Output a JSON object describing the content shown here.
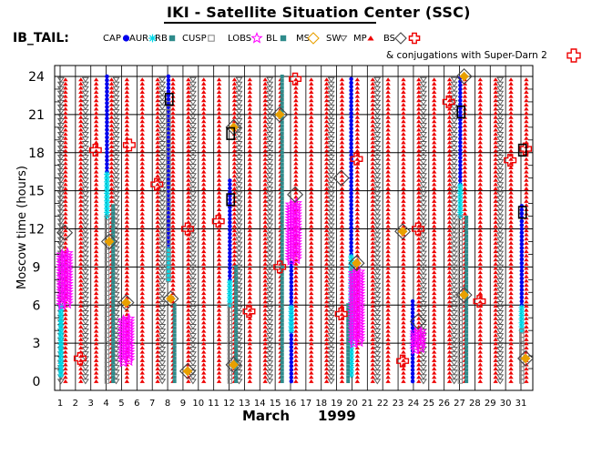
{
  "header": {
    "title": "IKI - Satellite Situation Center (SSC)"
  },
  "legend": {
    "prefix": "IB_TAIL:",
    "items": [
      {
        "label": "CAP",
        "symbol": "dot",
        "color": "#0000ee"
      },
      {
        "label": "AUR",
        "symbol": "star",
        "color": "#00d8e8"
      },
      {
        "label": "RB",
        "symbol": "square-filled",
        "color": "#2e8b8b"
      },
      {
        "label": "CUSP",
        "symbol": "square-open",
        "color": "#808080"
      },
      {
        "label": "LOBS",
        "symbol": "star-open",
        "color": "#ff00ff"
      },
      {
        "label": "BL",
        "symbol": "square-filled",
        "color": "#2e8b8b"
      },
      {
        "label": "MS",
        "symbol": "diamond",
        "color": "#e8a000"
      },
      {
        "label": "SW",
        "symbol": "triangle-down",
        "color": "#555555"
      },
      {
        "label": "MP",
        "symbol": "triangle-up",
        "color": "#ee0000"
      },
      {
        "label": "BS",
        "symbol": "diamond",
        "color": "#444444"
      },
      {
        "label": "",
        "symbol": "cross",
        "color": "#ee0000"
      }
    ],
    "conjugation_note": "& conjugations with Super-Darn 2"
  },
  "chart_data": {
    "type": "scatter",
    "title": "IKI - Satellite Situation Center (SSC)",
    "xlabel": "March",
    "xlabel_year": "1999",
    "ylabel": "Moscow time (hours)",
    "xlim": [
      1,
      31
    ],
    "ylim": [
      0,
      24
    ],
    "x_ticks": [
      1,
      2,
      3,
      4,
      5,
      6,
      7,
      8,
      9,
      10,
      11,
      12,
      13,
      14,
      15,
      16,
      17,
      18,
      19,
      20,
      21,
      22,
      23,
      24,
      25,
      26,
      27,
      28,
      29,
      30,
      31
    ],
    "y_ticks": [
      0,
      3,
      6,
      9,
      12,
      15,
      18,
      21,
      24
    ],
    "grid": true,
    "colors": {
      "CAP": "#0000ee",
      "AUR": "#00d8e8",
      "RB": "#2e8b8b",
      "CUSP": "#808080",
      "LOBS": "#ff00ff",
      "MS": "#e8a000",
      "SW": "#555555",
      "MP": "#ee0000",
      "BS": "#444444",
      "conj": "#ee0000"
    },
    "series": [
      {
        "name": "MP",
        "type": "track",
        "intervals": [
          [
            1.35,
            0,
            24
          ],
          [
            2.35,
            0,
            24
          ],
          [
            3.35,
            0,
            24
          ],
          [
            4.35,
            0,
            24
          ],
          [
            5.35,
            0,
            24
          ],
          [
            6.35,
            0,
            24
          ],
          [
            7.35,
            0,
            24
          ],
          [
            8.35,
            0,
            24
          ],
          [
            9.35,
            0,
            24
          ],
          [
            10.35,
            0,
            24
          ],
          [
            11.35,
            0,
            24
          ],
          [
            12.35,
            0,
            24
          ],
          [
            13.35,
            0,
            24
          ],
          [
            14.35,
            0,
            24
          ],
          [
            15.35,
            0,
            24
          ],
          [
            16.35,
            0,
            24
          ],
          [
            17.35,
            0,
            24
          ],
          [
            18.35,
            0,
            24
          ],
          [
            19.35,
            0,
            24
          ],
          [
            20.35,
            0,
            24
          ],
          [
            21.35,
            0,
            24
          ],
          [
            22.35,
            0,
            24
          ],
          [
            23.35,
            0,
            24
          ],
          [
            24.35,
            0,
            24
          ],
          [
            25.35,
            0,
            24
          ],
          [
            26.35,
            0,
            24
          ],
          [
            27.35,
            0,
            24
          ],
          [
            28.35,
            0,
            24
          ],
          [
            29.35,
            0,
            24
          ],
          [
            30.35,
            0,
            24
          ],
          [
            31.35,
            0,
            24
          ]
        ]
      },
      {
        "name": "SW",
        "type": "track",
        "intervals": [
          [
            1.05,
            0,
            24
          ],
          [
            2.65,
            0,
            24
          ],
          [
            4.65,
            0,
            24
          ],
          [
            7.65,
            0,
            24
          ],
          [
            9.65,
            0,
            24
          ],
          [
            12.65,
            0,
            24
          ],
          [
            14.65,
            0,
            24
          ],
          [
            18.65,
            0,
            24
          ],
          [
            21.65,
            0,
            24
          ],
          [
            24.65,
            0,
            24
          ],
          [
            26.65,
            0,
            24
          ],
          [
            29.65,
            0,
            24
          ]
        ]
      },
      {
        "name": "CAP",
        "type": "track",
        "intervals": [
          [
            4.05,
            16.5,
            24
          ],
          [
            8.05,
            10.5,
            24
          ],
          [
            12.05,
            8,
            16
          ],
          [
            16.05,
            0,
            9.5
          ],
          [
            19.95,
            10,
            24
          ],
          [
            23.95,
            0,
            6.5
          ],
          [
            27.05,
            15.5,
            24
          ],
          [
            31.05,
            6,
            14
          ]
        ]
      },
      {
        "name": "AUR",
        "type": "track",
        "intervals": [
          [
            1.05,
            0.5,
            6
          ],
          [
            4.05,
            13,
            16.5
          ],
          [
            8.05,
            8,
            10.5
          ],
          [
            12.05,
            6,
            8
          ],
          [
            16.05,
            4,
            6
          ],
          [
            19.95,
            0.5,
            10
          ],
          [
            27.05,
            13,
            15.5
          ],
          [
            31.05,
            4,
            6
          ]
        ]
      },
      {
        "name": "RB",
        "type": "track",
        "intervals": [
          [
            4.45,
            0,
            14
          ],
          [
            8.45,
            0,
            6
          ],
          [
            12.45,
            0,
            9
          ],
          [
            15.45,
            0,
            24
          ],
          [
            19.75,
            0,
            6
          ],
          [
            27.45,
            0,
            13
          ]
        ]
      },
      {
        "name": "CUSP",
        "type": "track",
        "intervals": [
          [
            4.05,
            0,
            13
          ],
          [
            8.05,
            8,
            22
          ],
          [
            12.05,
            0,
            6
          ],
          [
            27.05,
            0,
            13
          ],
          [
            31.05,
            0,
            4
          ],
          [
            20.05,
            5,
            9
          ]
        ]
      },
      {
        "name": "LOBS",
        "type": "track",
        "intervals": [
          [
            1.3,
            6,
            10
          ],
          [
            5.3,
            1.5,
            5
          ],
          [
            16.2,
            9.5,
            14
          ],
          [
            20.3,
            3,
            8.5
          ],
          [
            24.3,
            2.5,
            4
          ]
        ]
      },
      {
        "name": "BS",
        "type": "points",
        "points": [
          [
            1.3,
            11.7
          ],
          [
            4.2,
            11
          ],
          [
            5.3,
            6.2
          ],
          [
            8.2,
            6.5
          ],
          [
            9.3,
            0.8
          ],
          [
            12.3,
            1.3
          ],
          [
            12.3,
            20
          ],
          [
            15.3,
            21
          ],
          [
            16.3,
            14.7
          ],
          [
            19.3,
            16
          ],
          [
            20.3,
            9.3
          ],
          [
            23.3,
            11.8
          ],
          [
            24.3,
            4.7
          ],
          [
            27.3,
            6.8
          ],
          [
            27.3,
            24
          ],
          [
            31.3,
            1.8
          ]
        ]
      },
      {
        "name": "MS",
        "type": "points",
        "points": [
          [
            4.2,
            11
          ],
          [
            5.3,
            6.2
          ],
          [
            8.2,
            6.5
          ],
          [
            9.3,
            0.8
          ],
          [
            12.3,
            1.3
          ],
          [
            12.3,
            20
          ],
          [
            15.3,
            21
          ],
          [
            20.3,
            9.3
          ],
          [
            23.3,
            11.8
          ],
          [
            27.3,
            6.8
          ],
          [
            27.3,
            24
          ],
          [
            31.3,
            1.8
          ]
        ]
      },
      {
        "name": "conj",
        "type": "points",
        "points": [
          [
            2.3,
            1.8
          ],
          [
            3.3,
            18.2
          ],
          [
            5.5,
            18.6
          ],
          [
            7.3,
            15.5
          ],
          [
            9.3,
            12
          ],
          [
            11.3,
            12.6
          ],
          [
            13.3,
            5.5
          ],
          [
            15.3,
            9
          ],
          [
            16.3,
            23.8
          ],
          [
            19.3,
            5.3
          ],
          [
            20.3,
            17.5
          ],
          [
            23.3,
            1.6
          ],
          [
            24.3,
            12
          ],
          [
            26.3,
            22
          ],
          [
            28.3,
            6.3
          ],
          [
            30.3,
            17.4
          ],
          [
            31.3,
            18.3
          ]
        ]
      },
      {
        "name": "boxes",
        "type": "points",
        "points": [
          [
            8.1,
            22.2
          ],
          [
            12.1,
            14.3
          ],
          [
            12.1,
            19.5
          ],
          [
            27.1,
            21.2
          ],
          [
            31.1,
            13.3
          ],
          [
            31.1,
            18.2
          ]
        ]
      }
    ]
  }
}
